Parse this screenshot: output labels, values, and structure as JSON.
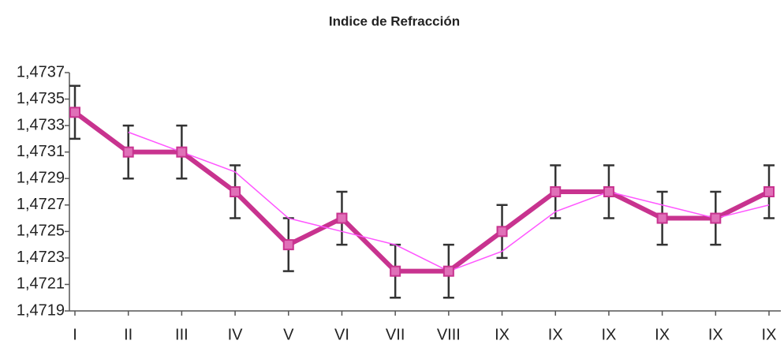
{
  "chart_data": {
    "type": "line",
    "title": "Indice de Refracción",
    "categories": [
      "I",
      "II",
      "III",
      "IV",
      "V",
      "VI",
      "VII",
      "VIII",
      "IX",
      "IX",
      "IX",
      "IX",
      "IX",
      "IX"
    ],
    "series": [
      {
        "color": "#c8338f",
        "values": [
          1.4734,
          1.4731,
          1.4731,
          1.4728,
          1.4724,
          1.4726,
          1.4722,
          1.4722,
          1.4725,
          1.4728,
          1.4728,
          1.4726,
          1.4726,
          1.4728
        ],
        "errors": [
          0.0002,
          0.0002,
          0.0002,
          0.0002,
          0.0002,
          0.0002,
          0.0002,
          0.0002,
          0.0002,
          0.0002,
          0.0002,
          0.0002,
          0.0002,
          0.0002
        ]
      },
      {
        "color": "#ff55ff",
        "values": [
          null,
          1.47325,
          1.4731,
          1.47295,
          1.4726,
          1.4725,
          1.4724,
          1.4722,
          1.47235,
          1.47265,
          1.4728,
          1.4727,
          1.4726,
          1.4727
        ]
      }
    ],
    "ylim": [
      1.4719,
      1.4737
    ],
    "yticks": [
      {
        "value": 1.4719,
        "label": "1,4719"
      },
      {
        "value": 1.4721,
        "label": "1,4721"
      },
      {
        "value": 1.4723,
        "label": "1,4723"
      },
      {
        "value": 1.4725,
        "label": "1,4725"
      },
      {
        "value": 1.4727,
        "label": "1,4727"
      },
      {
        "value": 1.4729,
        "label": "1,4729"
      },
      {
        "value": 1.4731,
        "label": "1,4731"
      },
      {
        "value": 1.4733,
        "label": "1,4733"
      },
      {
        "value": 1.4735,
        "label": "1,4735"
      },
      {
        "value": 1.4737,
        "label": "1,4737"
      }
    ],
    "grid": false
  }
}
